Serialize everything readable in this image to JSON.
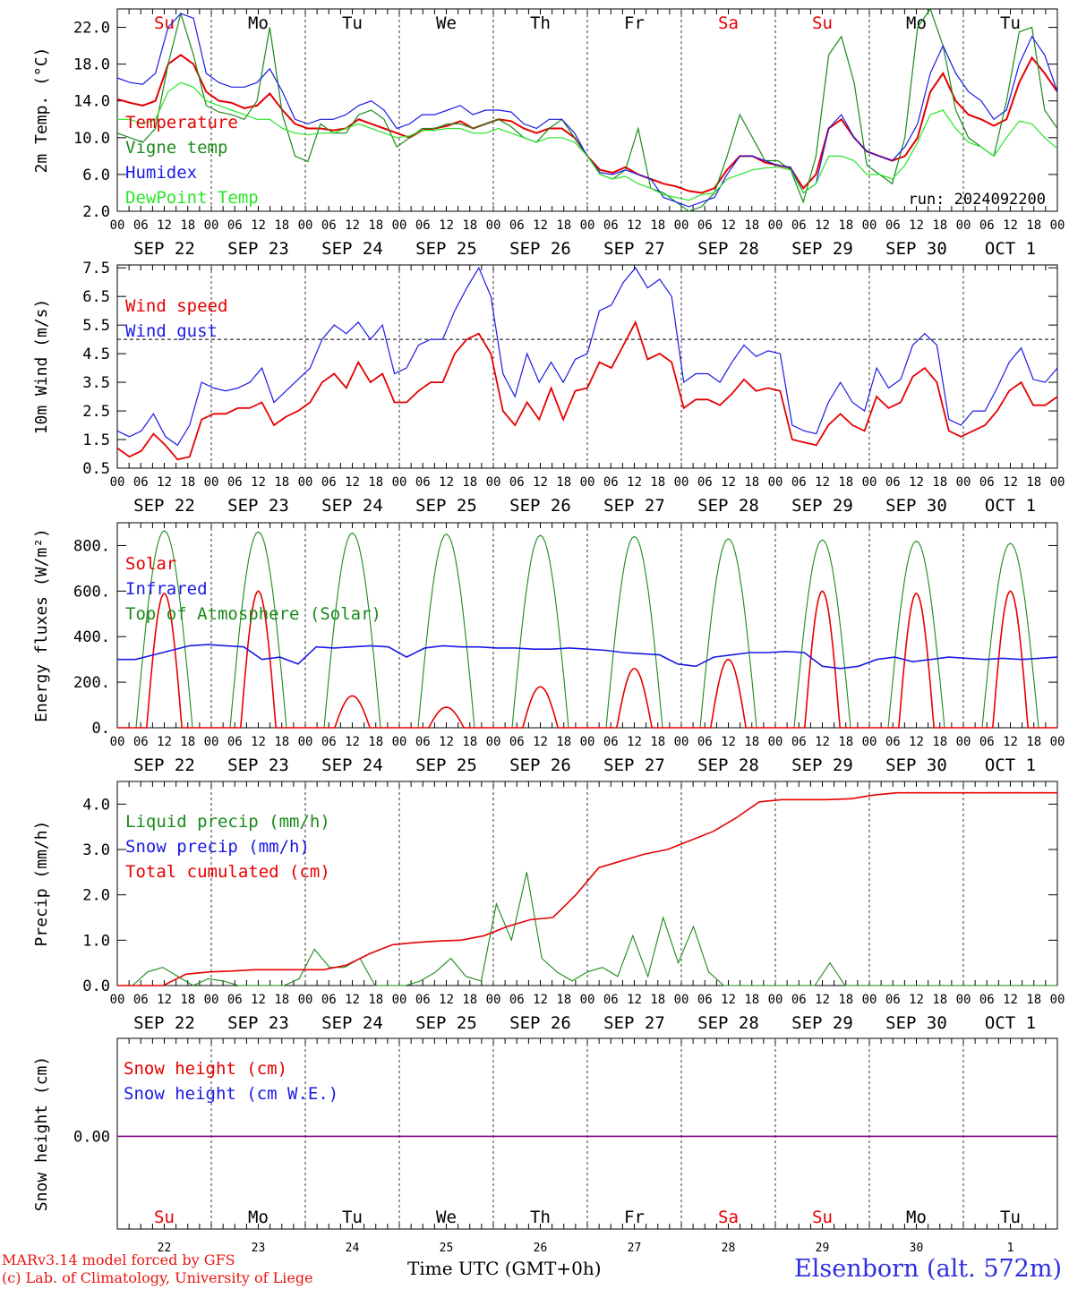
{
  "colors": {
    "red": "#e60000",
    "green": "#1a8a1a",
    "blue": "#1a1ae6",
    "lightgreen": "#28e628",
    "purple": "#800080",
    "grey": "#000000"
  },
  "x_axis": {
    "hour_ticks": [
      "00",
      "06",
      "12",
      "18"
    ],
    "dates": [
      "SEP 22",
      "SEP 23",
      "SEP 24",
      "SEP 25",
      "SEP 26",
      "SEP 27",
      "SEP 28",
      "SEP 29",
      "SEP 30",
      "OCT  1"
    ],
    "weekdays": [
      {
        "label": "Su",
        "weekend": true
      },
      {
        "label": "Mo",
        "weekend": false
      },
      {
        "label": "Tu",
        "weekend": false
      },
      {
        "label": "We",
        "weekend": false
      },
      {
        "label": "Th",
        "weekend": false
      },
      {
        "label": "Fr",
        "weekend": false
      },
      {
        "label": "Sa",
        "weekend": true
      },
      {
        "label": "Su",
        "weekend": true
      },
      {
        "label": "Mo",
        "weekend": false
      },
      {
        "label": "Tu",
        "weekend": false
      }
    ],
    "day_numbers": [
      "22",
      "23",
      "24",
      "25",
      "26",
      "27",
      "28",
      "29",
      "30",
      "1"
    ]
  },
  "chart_data": [
    {
      "type": "line",
      "ylabel": "2m Temp. (°C)",
      "ylim": [
        2,
        24
      ],
      "yticks": [
        "2.0",
        "6.0",
        "10.0",
        "14.0",
        "18.0",
        "22.0"
      ],
      "run_label": "run: 2024092200",
      "series": [
        {
          "name": "Temperature",
          "color": "red",
          "values": [
            14.2,
            13.8,
            13.5,
            14.0,
            18,
            19,
            18,
            15,
            14,
            13.8,
            13.2,
            13.5,
            14.8,
            13,
            11.5,
            11,
            11,
            10.8,
            11,
            12,
            11.5,
            11,
            10.5,
            10,
            10.8,
            11,
            11.3,
            11.8,
            11,
            11.5,
            12,
            11.8,
            11,
            10.5,
            11,
            11,
            10,
            8,
            6.5,
            6.2,
            6.8,
            6,
            5.5,
            5,
            4.7,
            4.2,
            4.0,
            4.5,
            6.5,
            8,
            8,
            7.3,
            7,
            6.7,
            4.5,
            6,
            11,
            12,
            10,
            8.5,
            8,
            7.5,
            8,
            10,
            15,
            17,
            14,
            12.5,
            12,
            11.3,
            12,
            16,
            18.7,
            17,
            15
          ]
        },
        {
          "name": "Vigne temp",
          "color": "green",
          "values": [
            10.5,
            10,
            9.5,
            11,
            18,
            23.5,
            19,
            13.5,
            12.8,
            12.5,
            12,
            14,
            22,
            12.5,
            8,
            7.4,
            11.5,
            10.5,
            10.5,
            12.5,
            13,
            12,
            9,
            10,
            11,
            11,
            11.5,
            11.5,
            11,
            11.5,
            12,
            11.2,
            10,
            9.5,
            11,
            12,
            10,
            8,
            6,
            5.5,
            6.5,
            11,
            4.5,
            4,
            3,
            2,
            2.5,
            4,
            8,
            12.5,
            10,
            7.5,
            7.5,
            6.5,
            3,
            8,
            19,
            21,
            16,
            7,
            6,
            5,
            10,
            22,
            24,
            20,
            13,
            10,
            9,
            8,
            14,
            21.5,
            22,
            13,
            11
          ]
        },
        {
          "name": "Humidex",
          "color": "blue",
          "values": [
            16.5,
            16,
            15.8,
            17,
            22,
            23.5,
            23,
            17,
            16,
            15.5,
            15.5,
            16,
            17.5,
            15,
            12,
            11.5,
            12,
            12,
            12.5,
            13.5,
            14,
            13,
            11,
            11.5,
            12.5,
            12.5,
            13,
            13.5,
            12.5,
            13,
            13,
            12.8,
            11.5,
            11,
            12,
            12,
            10.5,
            8,
            6.2,
            6,
            6.5,
            6,
            5.5,
            3.5,
            3,
            2.5,
            3,
            3.5,
            6,
            8,
            8,
            7.5,
            7,
            6.8,
            4,
            5,
            11,
            12.5,
            10,
            8.5,
            8,
            7.5,
            9,
            11.5,
            17,
            20,
            17,
            15,
            14,
            12,
            13,
            18,
            21,
            19,
            15
          ]
        },
        {
          "name": "DewPoint Temp",
          "color": "lightgreen",
          "values": [
            12,
            12,
            11.5,
            12,
            15,
            16,
            15.5,
            14,
            13.5,
            13,
            12.5,
            12,
            12,
            11,
            10.5,
            10.3,
            10.5,
            10.5,
            11,
            11.5,
            11,
            10.5,
            10,
            10.2,
            10.8,
            10.8,
            11,
            11,
            10.5,
            10.5,
            11,
            10.5,
            10,
            9.5,
            10,
            10,
            9.5,
            8,
            6,
            5.5,
            5.8,
            5,
            4.5,
            3.8,
            3.5,
            3.2,
            3.8,
            4,
            5.5,
            6,
            6.5,
            6.7,
            6.8,
            6.5,
            4,
            5,
            8,
            8,
            7.5,
            6,
            6,
            5.5,
            7,
            9.5,
            12.5,
            13,
            11,
            9.5,
            9,
            8,
            10,
            11.8,
            11.5,
            10,
            8.8
          ]
        }
      ]
    },
    {
      "type": "line",
      "ylabel": "10m Wind (m/s)",
      "ylim": [
        0.5,
        7.6
      ],
      "yticks": [
        "0.5",
        "1.5",
        "2.5",
        "3.5",
        "4.5",
        "5.5",
        "6.5",
        "7.5"
      ],
      "reference_line": 5.0,
      "series": [
        {
          "name": "Wind speed",
          "color": "red",
          "values": [
            1.2,
            0.9,
            1.1,
            1.7,
            1.3,
            0.8,
            0.9,
            2.2,
            2.4,
            2.4,
            2.6,
            2.6,
            2.8,
            2.0,
            2.3,
            2.5,
            2.8,
            3.5,
            3.8,
            3.3,
            4.2,
            3.5,
            3.8,
            2.8,
            2.8,
            3.2,
            3.5,
            3.5,
            4.5,
            5.0,
            5.2,
            4.5,
            2.5,
            2.0,
            2.8,
            2.2,
            3.3,
            2.2,
            3.2,
            3.3,
            4.2,
            4.0,
            4.8,
            5.6,
            4.3,
            4.5,
            4.2,
            2.6,
            2.9,
            2.9,
            2.7,
            3.1,
            3.6,
            3.2,
            3.3,
            3.2,
            1.5,
            1.4,
            1.3,
            2.0,
            2.4,
            2.0,
            1.8,
            3.0,
            2.6,
            2.8,
            3.7,
            4.0,
            3.5,
            1.8,
            1.6,
            1.8,
            2.0,
            2.5,
            3.2,
            3.5,
            2.7,
            2.7,
            3.0
          ]
        },
        {
          "name": "Wind gust",
          "color": "blue",
          "values": [
            1.8,
            1.6,
            1.8,
            2.4,
            1.6,
            1.3,
            2.0,
            3.5,
            3.3,
            3.2,
            3.3,
            3.5,
            4.0,
            2.8,
            3.2,
            3.6,
            4.0,
            5.0,
            5.5,
            5.2,
            5.6,
            5.0,
            5.5,
            3.8,
            4.0,
            4.8,
            5.0,
            5.0,
            6.0,
            6.8,
            7.5,
            6.5,
            3.8,
            3.0,
            4.5,
            3.5,
            4.2,
            3.5,
            4.3,
            4.5,
            6.0,
            6.2,
            7.0,
            7.5,
            6.8,
            7.1,
            6.5,
            3.5,
            3.8,
            3.8,
            3.5,
            4.2,
            4.8,
            4.4,
            4.6,
            4.5,
            2.0,
            1.8,
            1.7,
            2.8,
            3.5,
            2.8,
            2.5,
            4.0,
            3.3,
            3.6,
            4.8,
            5.2,
            4.8,
            2.2,
            2.0,
            2.5,
            2.5,
            3.3,
            4.2,
            4.7,
            3.6,
            3.5,
            4.0
          ]
        }
      ]
    },
    {
      "type": "line",
      "ylabel": "Energy fluxes (W/m²)",
      "ylim": [
        0,
        900
      ],
      "yticks": [
        "0.",
        "200.",
        "400.",
        "600.",
        "800."
      ],
      "series": [
        {
          "name": "Solar",
          "color": "red",
          "peaks": [
            590,
            600,
            140,
            90,
            180,
            260,
            300,
            600,
            590,
            600
          ]
        },
        {
          "name": "Infrared",
          "color": "blue",
          "values": [
            300,
            300,
            320,
            340,
            360,
            365,
            360,
            355,
            300,
            310,
            280,
            355,
            350,
            355,
            360,
            355,
            310,
            350,
            360,
            355,
            355,
            350,
            350,
            345,
            345,
            350,
            345,
            340,
            330,
            325,
            320,
            280,
            270,
            310,
            320,
            330,
            330,
            335,
            330,
            270,
            260,
            270,
            300,
            310,
            290,
            300,
            310,
            305,
            300,
            305,
            300,
            305,
            310
          ]
        },
        {
          "name": "Top of Atmosphere (Solar)",
          "color": "green",
          "peaks": [
            865,
            860,
            855,
            850,
            845,
            840,
            830,
            825,
            820,
            810
          ]
        }
      ]
    },
    {
      "type": "line",
      "ylabel": "Precip (mm/h)",
      "ylim": [
        0,
        4.5
      ],
      "yticks": [
        "0.0",
        "1.0",
        "2.0",
        "3.0",
        "4.0"
      ],
      "series": [
        {
          "name": "Liquid precip (mm/h)",
          "color": "green",
          "values": [
            0,
            0,
            0.3,
            0.4,
            0.2,
            0.0,
            0.15,
            0.1,
            0.0,
            0.0,
            0.0,
            0.0,
            0.15,
            0.8,
            0.4,
            0.4,
            0.6,
            0.0,
            0.0,
            0.0,
            0.1,
            0.3,
            0.6,
            0.2,
            0.1,
            1.8,
            1.0,
            2.5,
            0.6,
            0.3,
            0.1,
            0.3,
            0.4,
            0.2,
            1.1,
            0.2,
            1.5,
            0.5,
            1.3,
            0.3,
            0.0,
            0.0,
            0.0,
            0.0,
            0.0,
            0.0,
            0.0,
            0.5,
            0.0,
            0.0,
            0.0,
            0.0,
            0.0,
            0.0,
            0.0,
            0.0,
            0.0,
            0.0,
            0.0,
            0.0,
            0.0,
            0.0,
            0.0
          ]
        },
        {
          "name": "Snow precip (mm/h)",
          "color": "blue",
          "values": []
        },
        {
          "name": "Total cumulated (cm)",
          "color": "red",
          "values": [
            0,
            0,
            0,
            0.25,
            0.3,
            0.32,
            0.35,
            0.35,
            0.35,
            0.35,
            0.45,
            0.7,
            0.9,
            0.95,
            0.98,
            1.0,
            1.1,
            1.3,
            1.45,
            1.5,
            2.0,
            2.6,
            2.75,
            2.9,
            3.0,
            3.2,
            3.4,
            3.7,
            4.05,
            4.1,
            4.1,
            4.1,
            4.12,
            4.2,
            4.25,
            4.25,
            4.25,
            4.25,
            4.25,
            4.25,
            4.25,
            4.25
          ]
        }
      ]
    },
    {
      "type": "line",
      "ylabel": "Snow height (cm)",
      "yticks": [
        "0.00"
      ],
      "series": [
        {
          "name": "Snow height (cm)",
          "color": "red",
          "values": [
            0,
            0
          ]
        },
        {
          "name": "Snow height (cm W.E.)",
          "color": "blue",
          "values": [
            0,
            0
          ]
        }
      ]
    }
  ],
  "footer": {
    "model": "MARv3.14 model forced by GFS",
    "copyright": "(c) Lab. of Climatology, University of Liege",
    "time_label": "Time UTC (GMT+0h)",
    "station": "Elsenborn (alt. 572m)"
  }
}
